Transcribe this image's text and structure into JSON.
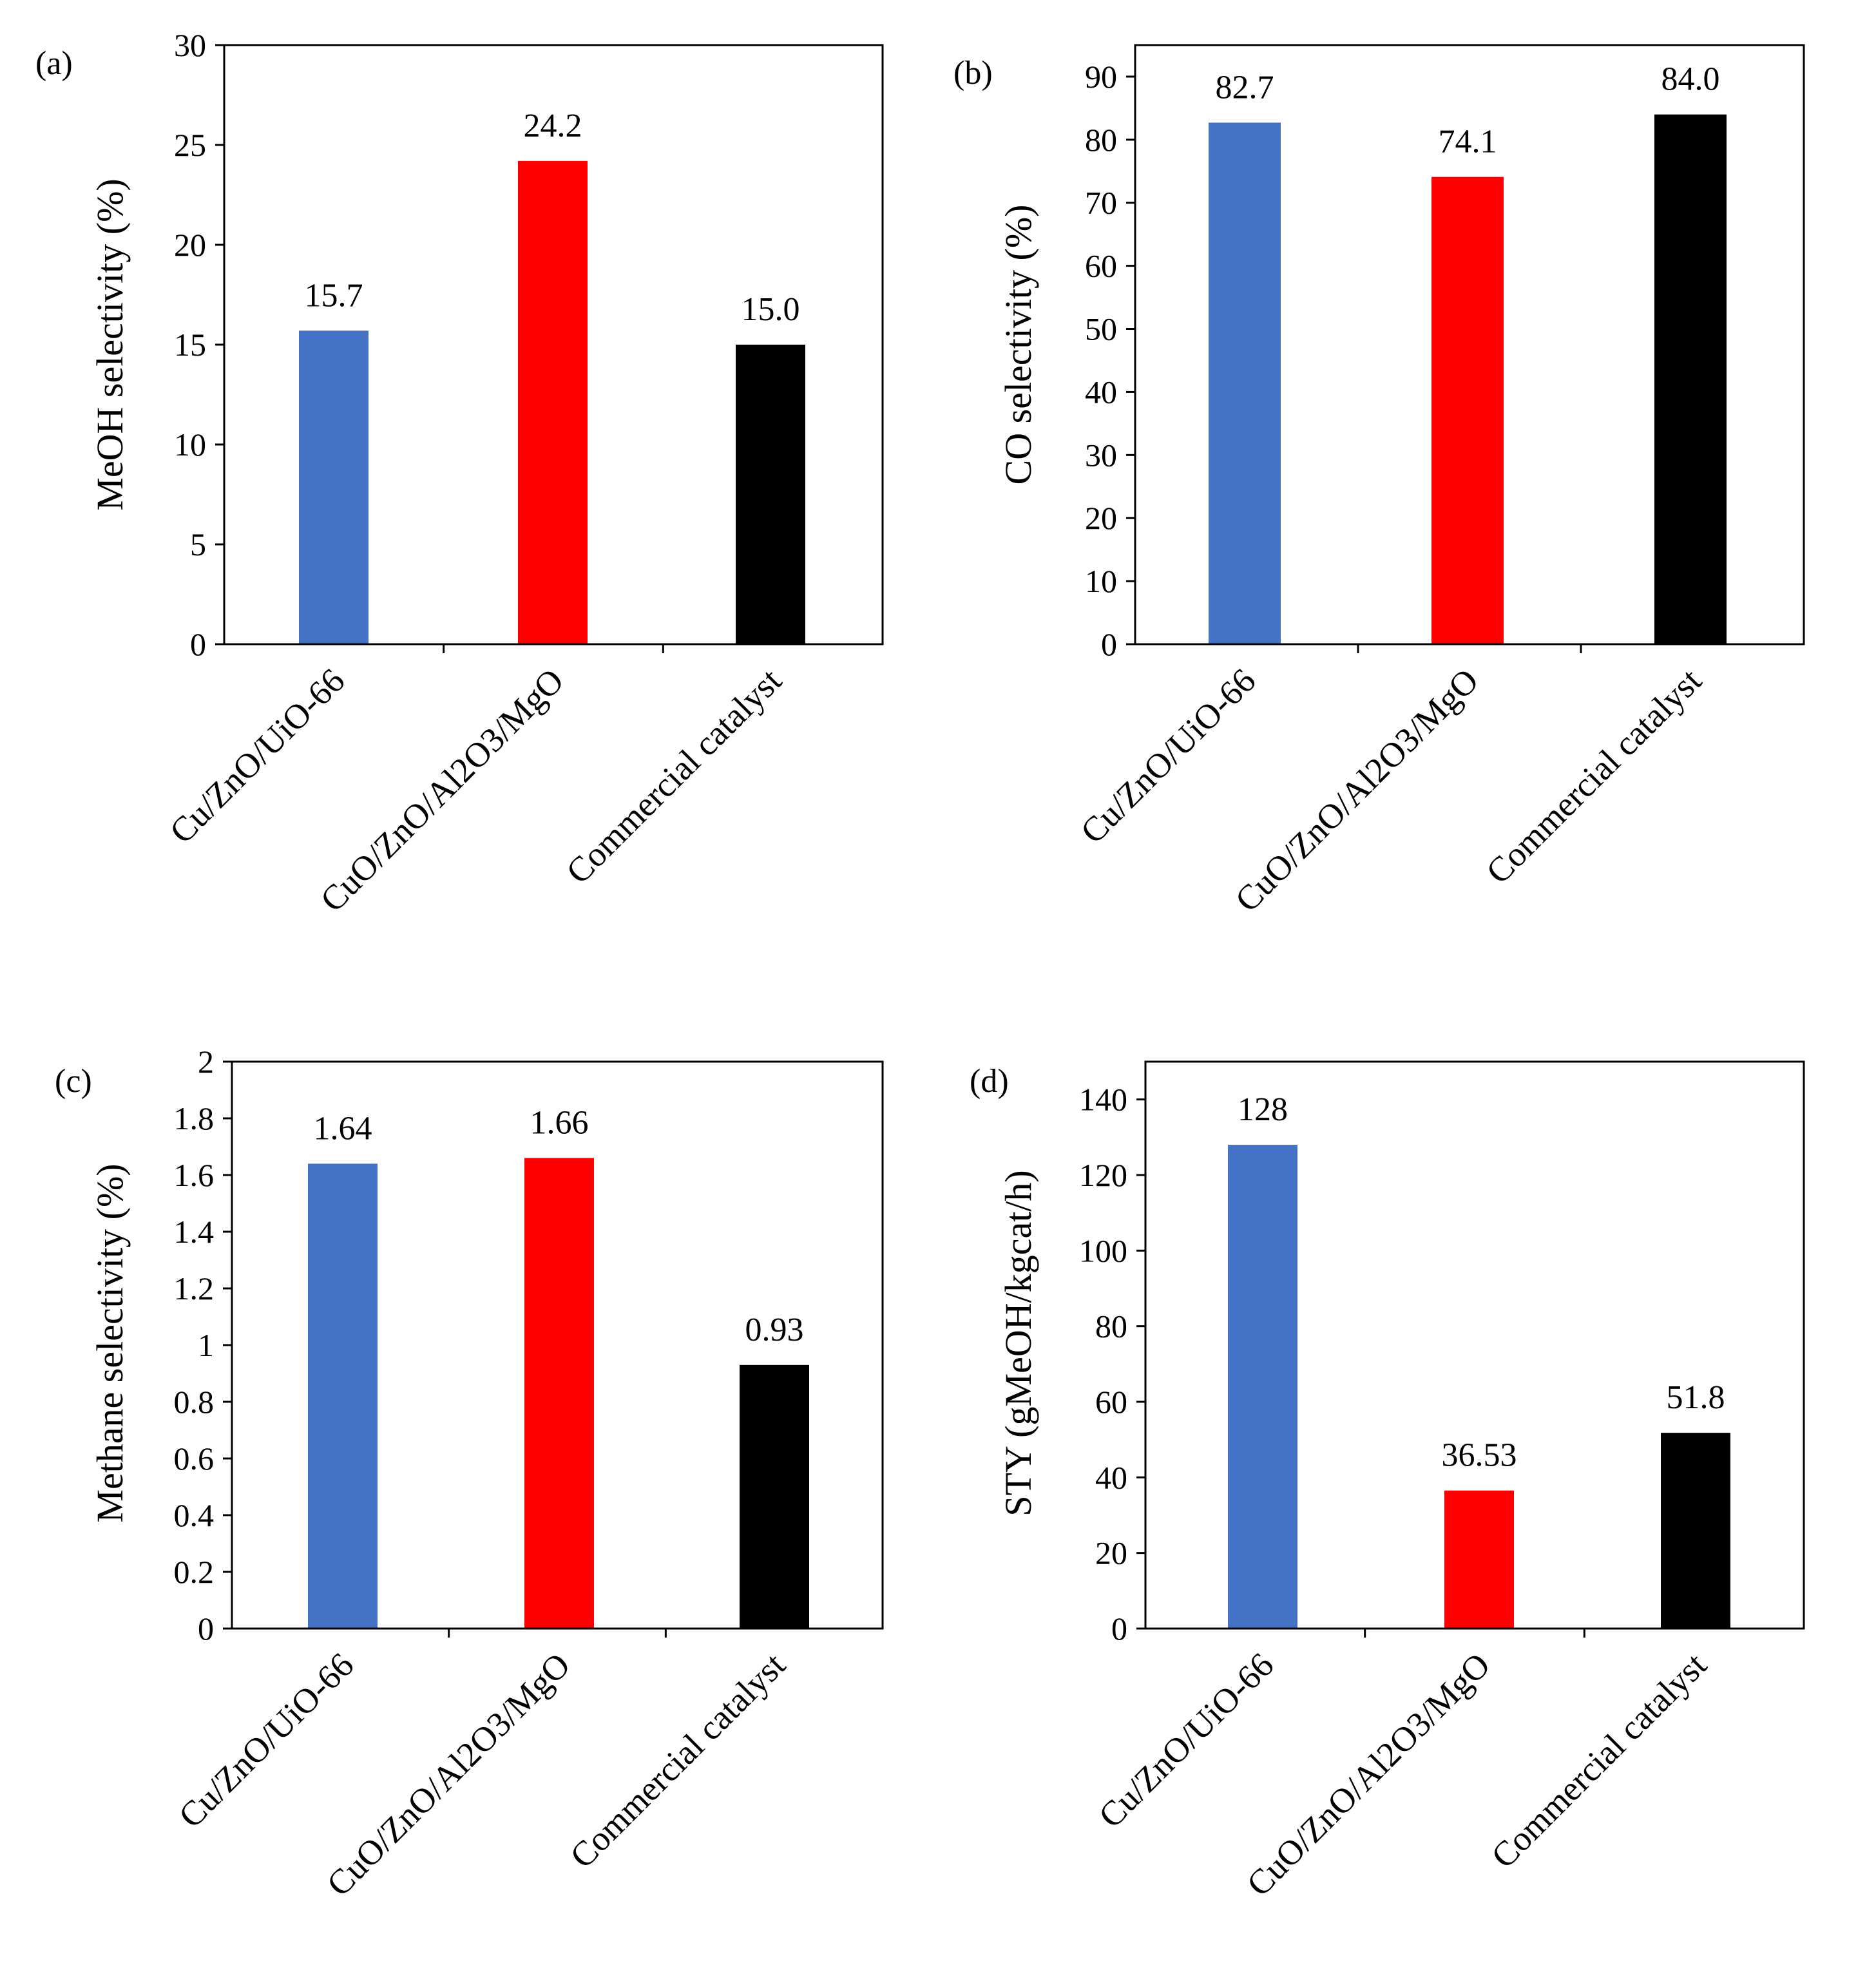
{
  "chart_data": [
    {
      "type": "bar",
      "panel_label": "(a)",
      "title": "",
      "categories": [
        "Cu/ZnO/UiO-66",
        "CuO/ZnO/Al2O3/MgO",
        "Commercial catalyst"
      ],
      "values": [
        15.7,
        24.2,
        15.0
      ],
      "data_labels": [
        "15.7",
        "24.2",
        "15.0"
      ],
      "bar_colors": [
        "#4472c4",
        "#ff0000",
        "#000000"
      ],
      "xlabel": "",
      "ylabel": "MeOH selectivity (%)",
      "ylim": [
        0,
        30
      ],
      "yticks": [
        0,
        5,
        10,
        15,
        20,
        25,
        30
      ],
      "ytick_labels": [
        "0",
        "5",
        "10",
        "15",
        "20",
        "25",
        "30"
      ],
      "grid": false,
      "legend": "none"
    },
    {
      "type": "bar",
      "panel_label": "(b)",
      "title": "",
      "categories": [
        "Cu/ZnO/UiO-66",
        "CuO/ZnO/Al2O3/MgO",
        "Commercial catalyst"
      ],
      "values": [
        82.7,
        74.1,
        84.0
      ],
      "data_labels": [
        "82.7",
        "74.1",
        "84.0"
      ],
      "bar_colors": [
        "#4472c4",
        "#ff0000",
        "#000000"
      ],
      "xlabel": "",
      "ylabel": "CO selectivity (%)",
      "ylim": [
        0,
        95
      ],
      "yticks": [
        0,
        10,
        20,
        30,
        40,
        50,
        60,
        70,
        80,
        90
      ],
      "ytick_labels": [
        "0",
        "10",
        "20",
        "30",
        "40",
        "50",
        "60",
        "70",
        "80",
        "90"
      ],
      "grid": false,
      "legend": "none"
    },
    {
      "type": "bar",
      "panel_label": "(c)",
      "title": "",
      "categories": [
        "Cu/ZnO/UiO-66",
        "CuO/ZnO/Al2O3/MgO",
        "Commercial catalyst"
      ],
      "values": [
        1.64,
        1.66,
        0.93
      ],
      "data_labels": [
        "1.64",
        "1.66",
        "0.93"
      ],
      "bar_colors": [
        "#4472c4",
        "#ff0000",
        "#000000"
      ],
      "xlabel": "",
      "ylabel": "Methane selectivity (%)",
      "ylim": [
        0,
        2
      ],
      "yticks": [
        0,
        0.2,
        0.4,
        0.6,
        0.8,
        1,
        1.2,
        1.4,
        1.6,
        1.8,
        2
      ],
      "ytick_labels": [
        "0",
        "0.2",
        "0.4",
        "0.6",
        "0.8",
        "1",
        "1.2",
        "1.4",
        "1.6",
        "1.8",
        "2"
      ],
      "grid": false,
      "legend": "none"
    },
    {
      "type": "bar",
      "panel_label": "(d)",
      "title": "",
      "categories": [
        "Cu/ZnO/UiO-66",
        "CuO/ZnO/Al2O3/MgO",
        "Commercial catalyst"
      ],
      "values": [
        128,
        36.53,
        51.8
      ],
      "data_labels": [
        "128",
        "36.53",
        "51.8"
      ],
      "bar_colors": [
        "#4472c4",
        "#ff0000",
        "#000000"
      ],
      "xlabel": "",
      "ylabel": "STY (gMeOH/kgcat/h)",
      "ylim": [
        0,
        150
      ],
      "yticks": [
        0,
        20,
        40,
        60,
        80,
        100,
        120,
        140
      ],
      "ytick_labels": [
        "0",
        "20",
        "40",
        "60",
        "80",
        "100",
        "120",
        "140"
      ],
      "grid": false,
      "legend": "none"
    }
  ]
}
